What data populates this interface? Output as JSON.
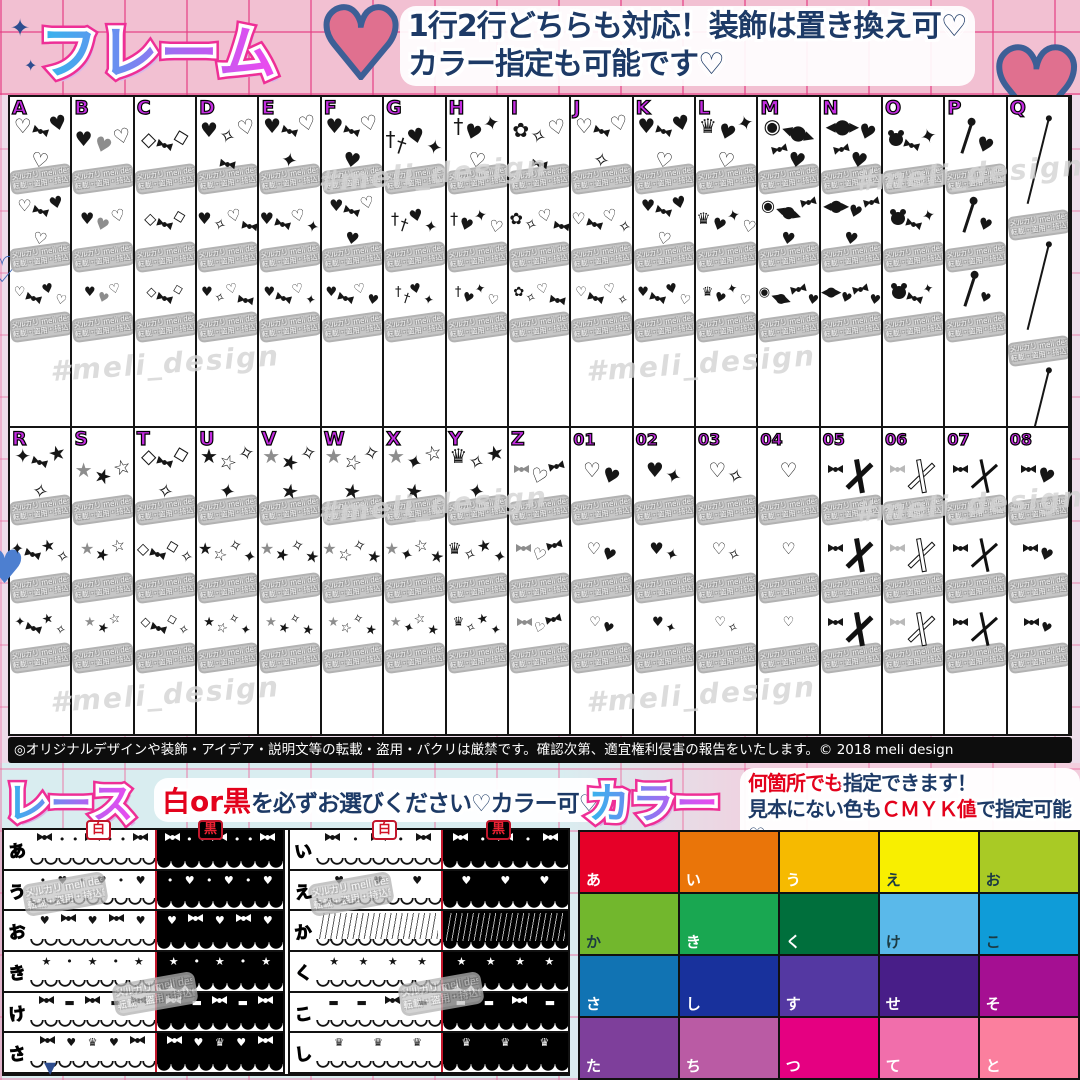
{
  "header": {
    "title": "フレーム",
    "desc_line1": "1行2行どちらも対応！装飾は置き換え可♡",
    "desc_line2": "カラー指定も可能です♡"
  },
  "frame_grid": {
    "watermark_line1": "メルカリ meli design",
    "watermark_line2": "転載・盗用・持込厳禁",
    "watermark_script": "#meli_design",
    "rows": [
      {
        "cells": [
          {
            "label": "A",
            "motifs": [
              "heart-outline",
              "bow",
              "heart",
              "heart-outline"
            ]
          },
          {
            "label": "B",
            "motifs": [
              "heart",
              "heart-grey",
              "heart-outline"
            ]
          },
          {
            "label": "C",
            "motifs": [
              "diamond-outline",
              "bow",
              "diamond-outline"
            ]
          },
          {
            "label": "D",
            "motifs": [
              "heart",
              "sparkle-outline",
              "heart-outline",
              "bow"
            ]
          },
          {
            "label": "E",
            "motifs": [
              "heart",
              "bow",
              "heart-outline",
              "sparkle"
            ]
          },
          {
            "label": "F",
            "motifs": [
              "heart",
              "bow",
              "heart-outline",
              "heart"
            ]
          },
          {
            "label": "G",
            "motifs": [
              "cross",
              "cross",
              "heart",
              "sparkle"
            ]
          },
          {
            "label": "H",
            "motifs": [
              "cross",
              "heart",
              "sparkle",
              "heart-outline"
            ]
          },
          {
            "label": "I",
            "motifs": [
              "rose",
              "sparkle-outline",
              "heart-outline",
              "bow"
            ]
          },
          {
            "label": "J",
            "motifs": [
              "heart-outline",
              "bow",
              "heart-outline",
              "sparkle-outline"
            ]
          },
          {
            "label": "K",
            "motifs": [
              "heart",
              "bow",
              "heart",
              "heart-outline"
            ]
          },
          {
            "label": "L",
            "motifs": [
              "crown",
              "heart",
              "sparkle",
              "heart-outline"
            ]
          },
          {
            "label": "M",
            "motifs": [
              "swirl",
              "candy",
              "bow",
              "heart"
            ]
          },
          {
            "label": "N",
            "motifs": [
              "candy",
              "heart",
              "bow",
              "heart"
            ]
          },
          {
            "label": "O",
            "motifs": [
              "bear",
              "bow",
              "sparkle"
            ]
          },
          {
            "label": "P",
            "motifs": [
              "pin",
              "heart"
            ]
          },
          {
            "label": "Q",
            "motifs": [
              "needle"
            ]
          }
        ]
      },
      {
        "cells": [
          {
            "label": "R",
            "motifs": [
              "sparkle",
              "bow",
              "star",
              "sparkle-outline"
            ]
          },
          {
            "label": "S",
            "motifs": [
              "star-grey",
              "star",
              "star-outline"
            ]
          },
          {
            "label": "T",
            "motifs": [
              "diamond-outline",
              "bow",
              "diamond-outline",
              "sparkle-outline"
            ]
          },
          {
            "label": "U",
            "motifs": [
              "star",
              "star-outline",
              "sparkle-outline",
              "sparkle"
            ]
          },
          {
            "label": "V",
            "motifs": [
              "star-grey",
              "star",
              "sparkle-outline",
              "star"
            ]
          },
          {
            "label": "W",
            "motifs": [
              "star-grey",
              "star-outline",
              "sparkle-outline",
              "star"
            ]
          },
          {
            "label": "X",
            "motifs": [
              "star-grey",
              "sparkle",
              "star-outline",
              "star"
            ]
          },
          {
            "label": "Y",
            "motifs": [
              "crown",
              "sparkle-outline",
              "star",
              "sparkle"
            ]
          },
          {
            "label": "Z",
            "motifs": [
              "bow-grey",
              "heart-outline",
              "bow"
            ]
          },
          {
            "label": "01",
            "motifs": [
              "heart-outline",
              "heart"
            ]
          },
          {
            "label": "02",
            "motifs": [
              "heart",
              "sparkle"
            ]
          },
          {
            "label": "03",
            "motifs": [
              "heart-outline",
              "sparkle-outline"
            ]
          },
          {
            "label": "04",
            "motifs": [
              "heart-outline"
            ]
          },
          {
            "label": "05",
            "motifs": [
              "bow",
              "xribbon-black"
            ]
          },
          {
            "label": "06",
            "motifs": [
              "bow-light",
              "xribbon-white"
            ]
          },
          {
            "label": "07",
            "motifs": [
              "bow",
              "xpins"
            ]
          },
          {
            "label": "08",
            "motifs": [
              "bow",
              "heart"
            ]
          }
        ]
      }
    ]
  },
  "copyright": "◎オリジナルデザインや装飾・アイデア・説明文等の転載・盗用・パクリは厳禁です。確認次第、適宜権利侵害の報告をいたします。© 2018 meli design",
  "lace": {
    "title": "レース",
    "note_red": "白or黒",
    "note_rest": "を必ずお選びください♡カラー可♡",
    "header_white": "白",
    "header_black": "黒",
    "groups": [
      {
        "rows": [
          {
            "label": "あ",
            "motifs": [
              "bow",
              "dot",
              "dot",
              "bow",
              "dot",
              "dot",
              "bow"
            ]
          },
          {
            "label": "う",
            "motifs": [
              "dot",
              "heart",
              "dot",
              "heart",
              "dot",
              "heart"
            ]
          },
          {
            "label": "お",
            "motifs": [
              "heart",
              "bow",
              "heart",
              "bow",
              "heart"
            ]
          },
          {
            "label": "き",
            "motifs": [
              "star",
              "dot",
              "star",
              "dot",
              "star"
            ]
          },
          {
            "label": "け",
            "motifs": [
              "bow",
              "dash",
              "bow",
              "dash",
              "bow"
            ]
          },
          {
            "label": "さ",
            "motifs": [
              "bow",
              "heart",
              "crown",
              "heart",
              "bow"
            ]
          }
        ]
      },
      {
        "rows": [
          {
            "label": "い",
            "motifs": [
              "bow",
              "dot",
              "bow",
              "dot",
              "bow"
            ]
          },
          {
            "label": "え",
            "motifs": [
              "heart",
              "heart",
              "heart"
            ]
          },
          {
            "label": "か",
            "motifs": [
              "frill"
            ]
          },
          {
            "label": "く",
            "motifs": [
              "star",
              "star",
              "star",
              "star"
            ]
          },
          {
            "label": "こ",
            "motifs": [
              "dash",
              "dash",
              "bow",
              "dash"
            ]
          },
          {
            "label": "し",
            "motifs": [
              "crown",
              "crown",
              "crown"
            ]
          }
        ]
      }
    ]
  },
  "color_section": {
    "title": "カラー",
    "line1_red": "何箇所でも",
    "line1_rest": "指定できます！",
    "line2_pre": "見本にない色も",
    "line2_red": "ＣＭＹＫ値",
    "line2_post": "で指定可能♡",
    "palette": [
      [
        {
          "label": "あ",
          "hex": "#e60028",
          "text": "light"
        },
        {
          "label": "い",
          "hex": "#ea7509",
          "text": "light"
        },
        {
          "label": "う",
          "hex": "#f6ba00",
          "text": "light"
        },
        {
          "label": "え",
          "hex": "#f8ef00",
          "text": "dark"
        },
        {
          "label": "お",
          "hex": "#a9ca25",
          "text": "dark"
        }
      ],
      [
        {
          "label": "か",
          "hex": "#72b72d",
          "text": "dark"
        },
        {
          "label": "き",
          "hex": "#19a751",
          "text": "light"
        },
        {
          "label": "く",
          "hex": "#006f3c",
          "text": "light"
        },
        {
          "label": "け",
          "hex": "#5ab9ea",
          "text": "dark"
        },
        {
          "label": "こ",
          "hex": "#0f9cd8",
          "text": "dark"
        }
      ],
      [
        {
          "label": "さ",
          "hex": "#1173b3",
          "text": "light"
        },
        {
          "label": "し",
          "hex": "#18319c",
          "text": "light"
        },
        {
          "label": "す",
          "hex": "#5438a2",
          "text": "light"
        },
        {
          "label": "せ",
          "hex": "#481e88",
          "text": "light"
        },
        {
          "label": "そ",
          "hex": "#a50f92",
          "text": "light"
        }
      ],
      [
        {
          "label": "た",
          "hex": "#7e3f9b",
          "text": "light"
        },
        {
          "label": "ち",
          "hex": "#ba5ba4",
          "text": "light"
        },
        {
          "label": "つ",
          "hex": "#e50081",
          "text": "light"
        },
        {
          "label": "て",
          "hex": "#f16eab",
          "text": "light"
        },
        {
          "label": "と",
          "hex": "#fb7f9e",
          "text": "light"
        }
      ]
    ]
  },
  "colors": {
    "accent_pink": "#ee2f96",
    "navy": "#1d3a66",
    "red": "#e3021c",
    "label_purple": "#c32ce0",
    "lace_blue": "#3fa9e8",
    "watermark_grey": "#c6c6c6",
    "title_gradient": [
      "#35b6ec",
      "#6b8df0",
      "#b95ef2",
      "#f048ee"
    ]
  }
}
